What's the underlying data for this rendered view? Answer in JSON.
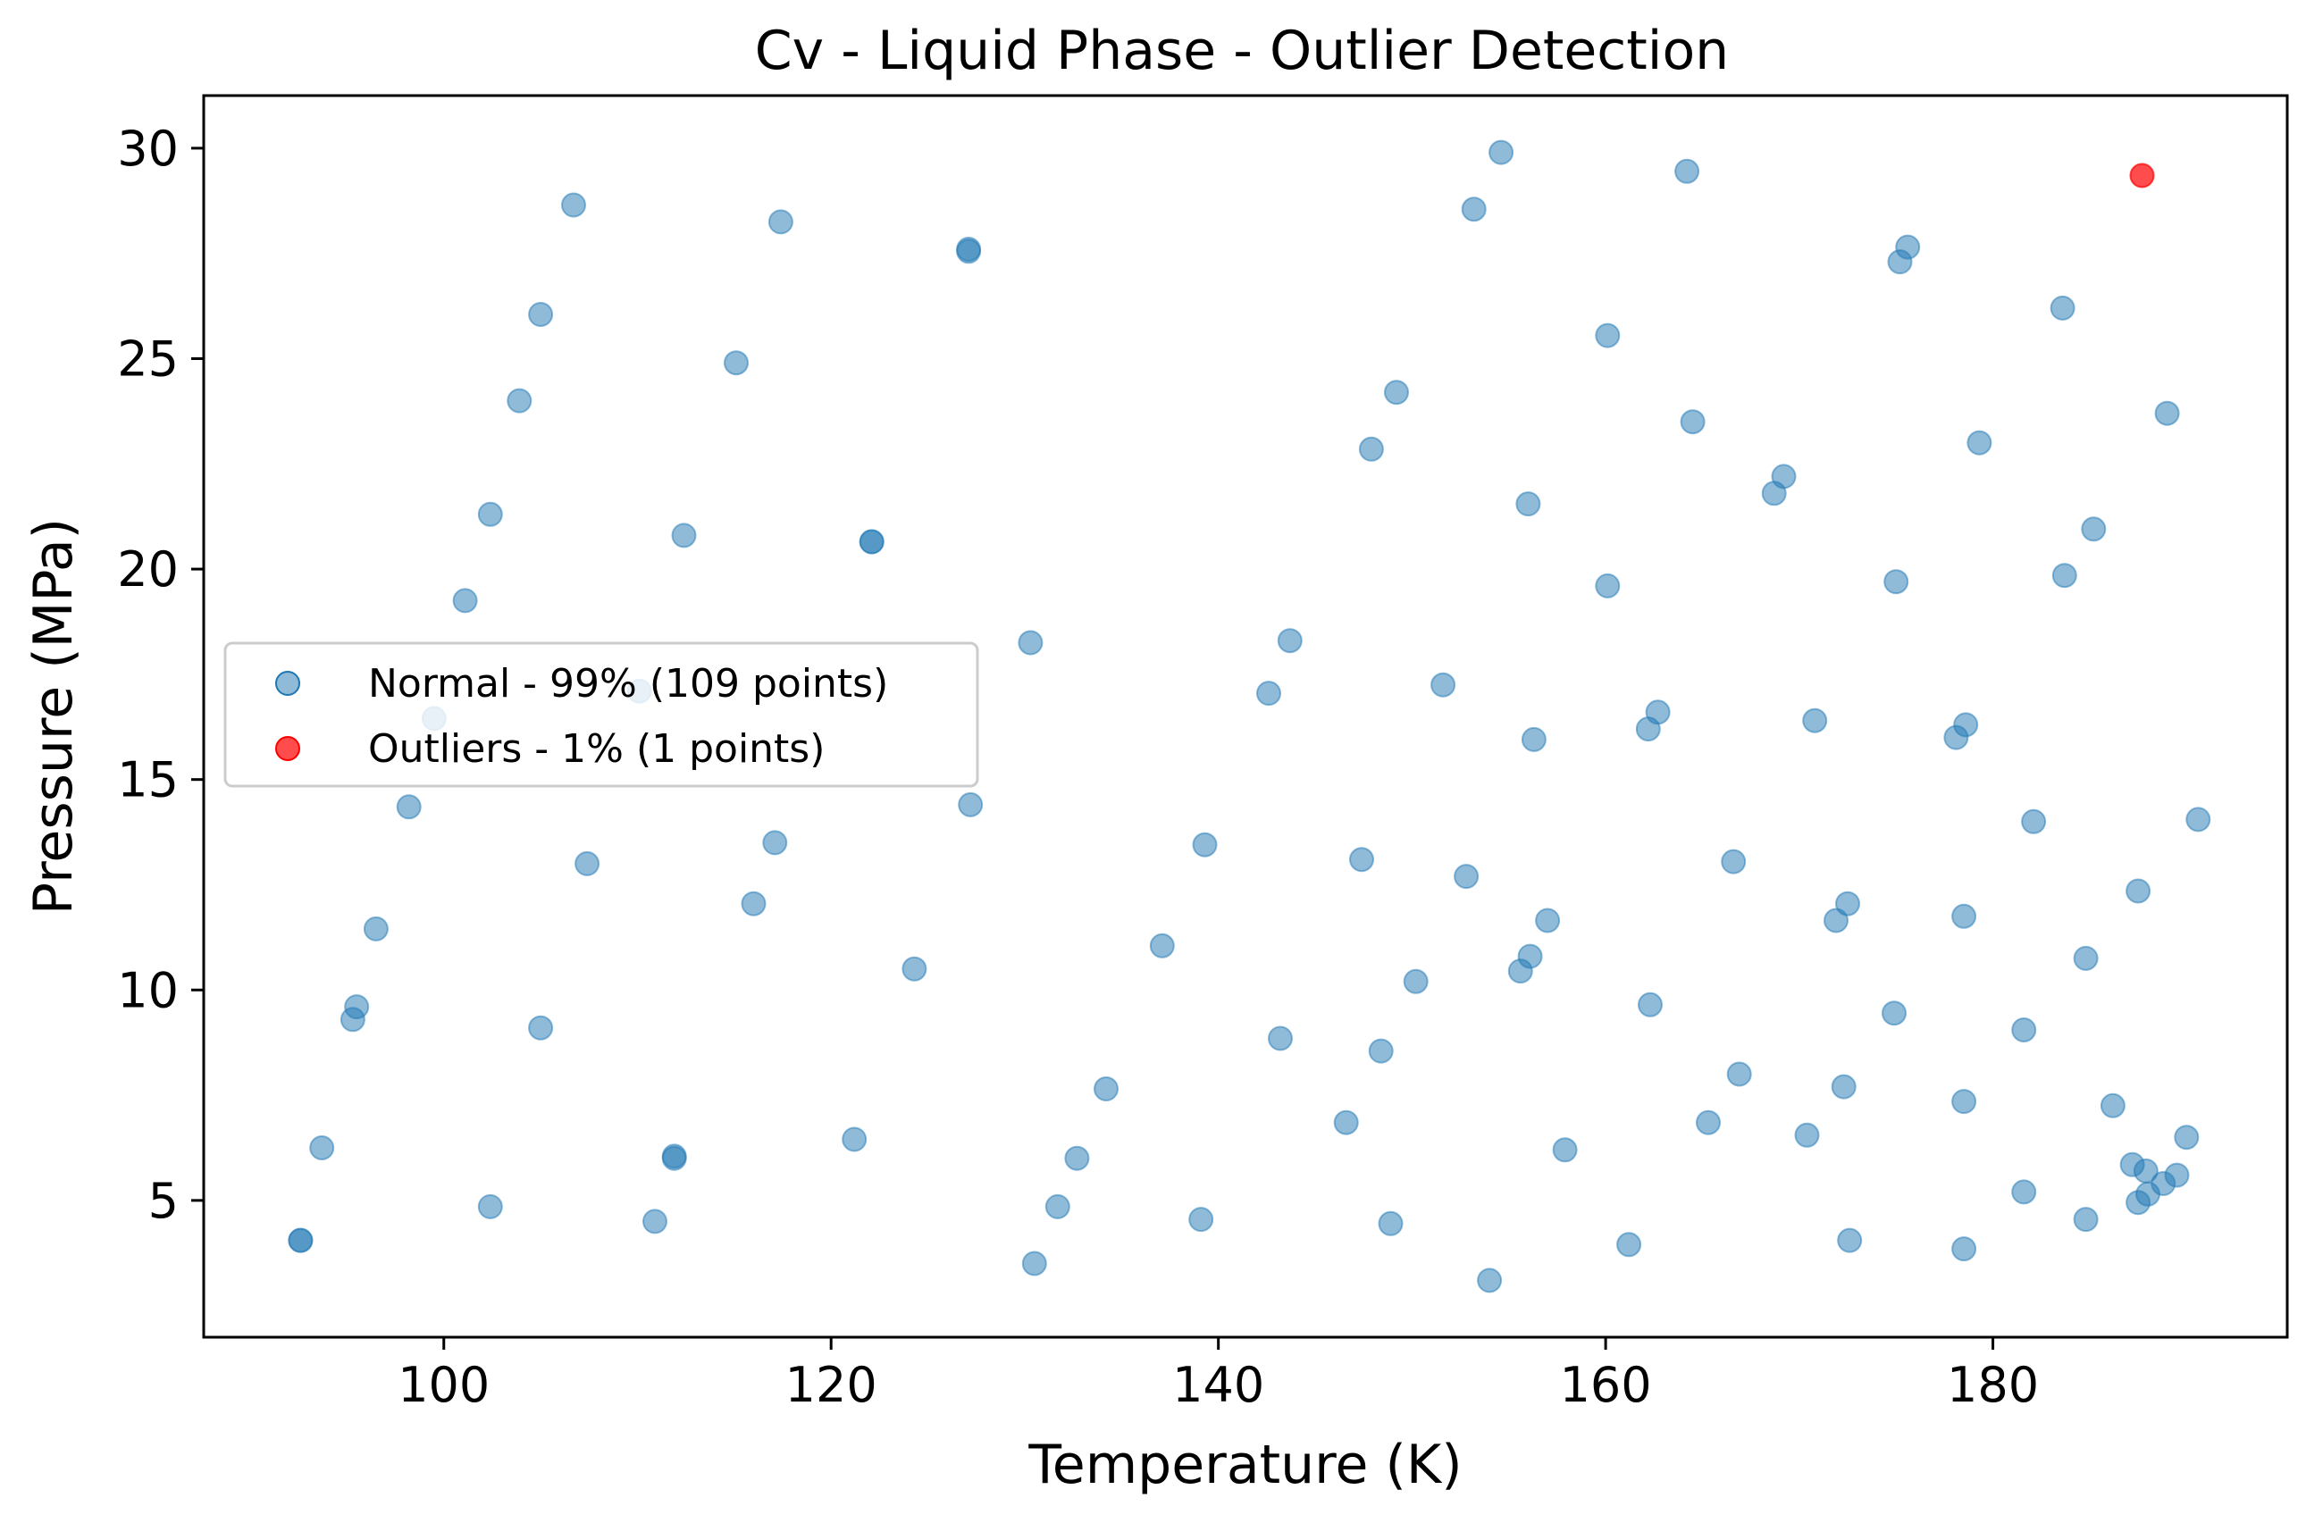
{
  "chart_data": {
    "type": "scatter",
    "title": "Cv - Liquid Phase - Outlier Detection",
    "xlabel": "Temperature (K)",
    "ylabel": "Pressure (MPa)",
    "xlim": [
      87.6,
      195.2
    ],
    "ylim": [
      1.75,
      31.25
    ],
    "xticks": [
      100,
      120,
      140,
      160,
      180
    ],
    "yticks": [
      5,
      10,
      15,
      20,
      25,
      30
    ],
    "grid": false,
    "legend_position": "center-left",
    "series": [
      {
        "name": "Normal - 99% (109 points)",
        "color": "#1f77b4",
        "points": [
          [
            92.6,
            4.05
          ],
          [
            92.6,
            4.05
          ],
          [
            93.7,
            6.25
          ],
          [
            95.3,
            9.3
          ],
          [
            95.5,
            9.6
          ],
          [
            96.5,
            11.45
          ],
          [
            98.2,
            14.35
          ],
          [
            99.5,
            16.45
          ],
          [
            101.1,
            19.25
          ],
          [
            102.4,
            21.3
          ],
          [
            102.4,
            4.85
          ],
          [
            103.9,
            24.0
          ],
          [
            105.0,
            26.05
          ],
          [
            105.0,
            9.1
          ],
          [
            106.7,
            28.65
          ],
          [
            107.4,
            13.0
          ],
          [
            110.1,
            17.1
          ],
          [
            110.9,
            4.5
          ],
          [
            111.9,
            6.05
          ],
          [
            111.9,
            6.0
          ],
          [
            112.4,
            20.8
          ],
          [
            115.1,
            24.9
          ],
          [
            116.0,
            12.05
          ],
          [
            117.1,
            13.5
          ],
          [
            117.4,
            28.25
          ],
          [
            121.2,
            6.45
          ],
          [
            122.1,
            20.65
          ],
          [
            122.1,
            20.65
          ],
          [
            124.3,
            10.5
          ],
          [
            127.1,
            27.6
          ],
          [
            127.1,
            27.55
          ],
          [
            127.2,
            14.4
          ],
          [
            130.3,
            18.25
          ],
          [
            130.5,
            3.5
          ],
          [
            131.7,
            4.85
          ],
          [
            132.7,
            6.0
          ],
          [
            134.2,
            7.65
          ],
          [
            137.1,
            11.05
          ],
          [
            139.1,
            4.55
          ],
          [
            139.3,
            13.45
          ],
          [
            142.6,
            17.05
          ],
          [
            143.2,
            8.85
          ],
          [
            143.7,
            18.3
          ],
          [
            146.6,
            6.85
          ],
          [
            147.4,
            13.1
          ],
          [
            147.9,
            22.85
          ],
          [
            148.4,
            8.55
          ],
          [
            148.9,
            4.45
          ],
          [
            149.2,
            24.2
          ],
          [
            150.2,
            10.2
          ],
          [
            151.6,
            17.25
          ],
          [
            152.8,
            12.7
          ],
          [
            153.2,
            28.55
          ],
          [
            154.0,
            3.1
          ],
          [
            154.6,
            29.9
          ],
          [
            155.6,
            10.45
          ],
          [
            156.0,
            21.55
          ],
          [
            156.1,
            10.8
          ],
          [
            156.3,
            15.95
          ],
          [
            157.0,
            11.65
          ],
          [
            157.9,
            6.2
          ],
          [
            160.1,
            25.55
          ],
          [
            160.1,
            19.6
          ],
          [
            161.2,
            3.95
          ],
          [
            162.2,
            16.2
          ],
          [
            162.3,
            9.65
          ],
          [
            162.7,
            16.6
          ],
          [
            164.2,
            29.45
          ],
          [
            164.5,
            23.5
          ],
          [
            165.3,
            6.85
          ],
          [
            166.6,
            13.05
          ],
          [
            166.9,
            8.0
          ],
          [
            168.7,
            21.8
          ],
          [
            169.2,
            22.2
          ],
          [
            170.4,
            6.55
          ],
          [
            170.8,
            16.4
          ],
          [
            171.9,
            11.65
          ],
          [
            172.3,
            7.7
          ],
          [
            172.5,
            12.05
          ],
          [
            172.6,
            4.05
          ],
          [
            174.9,
            9.45
          ],
          [
            175.0,
            19.7
          ],
          [
            175.2,
            27.3
          ],
          [
            175.6,
            27.65
          ],
          [
            178.1,
            16.0
          ],
          [
            178.5,
            11.75
          ],
          [
            178.5,
            7.35
          ],
          [
            178.5,
            3.85
          ],
          [
            178.6,
            16.3
          ],
          [
            179.3,
            23.0
          ],
          [
            181.6,
            5.2
          ],
          [
            181.6,
            9.05
          ],
          [
            182.1,
            14.0
          ],
          [
            183.6,
            26.2
          ],
          [
            183.7,
            19.85
          ],
          [
            184.8,
            10.75
          ],
          [
            184.8,
            4.55
          ],
          [
            185.2,
            20.95
          ],
          [
            186.2,
            7.25
          ],
          [
            187.2,
            5.85
          ],
          [
            187.5,
            12.35
          ],
          [
            187.5,
            4.95
          ],
          [
            187.9,
            5.7
          ],
          [
            188.0,
            5.15
          ],
          [
            188.8,
            5.4
          ],
          [
            189.0,
            23.7
          ],
          [
            189.5,
            5.6
          ],
          [
            190.0,
            6.5
          ],
          [
            190.6,
            14.05
          ]
        ]
      },
      {
        "name": "Outliers - 1% (1 points)",
        "color": "#ff0000",
        "points": [
          [
            187.7,
            29.35
          ]
        ]
      }
    ]
  }
}
